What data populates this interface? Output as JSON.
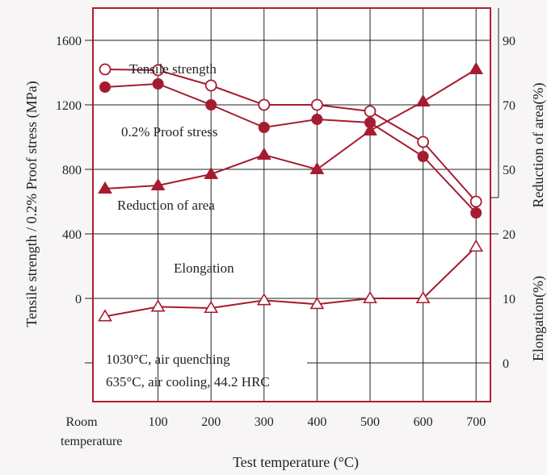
{
  "chart_data": {
    "type": "line",
    "title": "",
    "xlabel": "Test temperature (°C)",
    "ylabel_left": "Tensile strength / 0.2% Proof stress (MPa)",
    "ylabel_right_top": "Reduction of area(%)",
    "ylabel_right_bottom": "Elongation(%)",
    "x_categories": [
      "Room",
      "100",
      "200",
      "300",
      "400",
      "500",
      "600",
      "700"
    ],
    "x_category_sublabel": "temperature",
    "x_values": [
      0,
      1,
      2,
      3,
      4,
      5,
      6,
      7
    ],
    "y_left_ticks": [
      "1600",
      "1200",
      "800",
      "400",
      "0"
    ],
    "y_right_top_ticks": [
      "90",
      "70",
      "50",
      "20"
    ],
    "y_right_bottom_ticks": [
      "10",
      "0"
    ],
    "y_left_range": [
      0,
      1600
    ],
    "y_right_top_range": [
      40,
      90
    ],
    "y_right_bottom_range": [
      0,
      20
    ],
    "grid": true,
    "annotation": {
      "line1": "1030°C, air quenching",
      "line2": "635°C, air cooling, 44.2 HRC"
    },
    "series": [
      {
        "name": "Tensile strength",
        "axis": "left",
        "marker": "open-circle",
        "x": [
          0,
          1,
          2,
          3,
          4,
          5,
          6,
          7
        ],
        "values": [
          1420,
          1415,
          1320,
          1200,
          1200,
          1160,
          970,
          600
        ]
      },
      {
        "name": "0.2% Proof stress",
        "axis": "left",
        "marker": "filled-circle",
        "x": [
          0,
          1,
          2,
          3,
          4,
          5,
          6,
          7
        ],
        "values": [
          1310,
          1330,
          1200,
          1060,
          1110,
          1090,
          880,
          530
        ]
      },
      {
        "name": "Reduction of area",
        "axis": "right_top",
        "marker": "filled-triangle",
        "x": [
          0,
          1,
          2,
          3,
          4,
          5,
          6,
          7
        ],
        "values": [
          44,
          45,
          48.5,
          54.5,
          50,
          62,
          71,
          81
        ]
      },
      {
        "name": "Elongation",
        "axis": "right_bottom",
        "marker": "open-triangle",
        "x": [
          0,
          1,
          2,
          3,
          4,
          5,
          6,
          7
        ],
        "values": [
          7.2,
          8.7,
          8.5,
          9.7,
          9.1,
          10,
          10,
          18
        ]
      }
    ],
    "series_labels": {
      "tensile": "Tensile strength",
      "proof": "0.2% Proof stress",
      "reduction": "Reduction of area",
      "elongation": "Elongation"
    },
    "colors": {
      "line": "#a51c30",
      "frame": "#b01e32",
      "grid": "#222222",
      "background": "#f7f5f6",
      "plot": "#ffffff"
    }
  }
}
